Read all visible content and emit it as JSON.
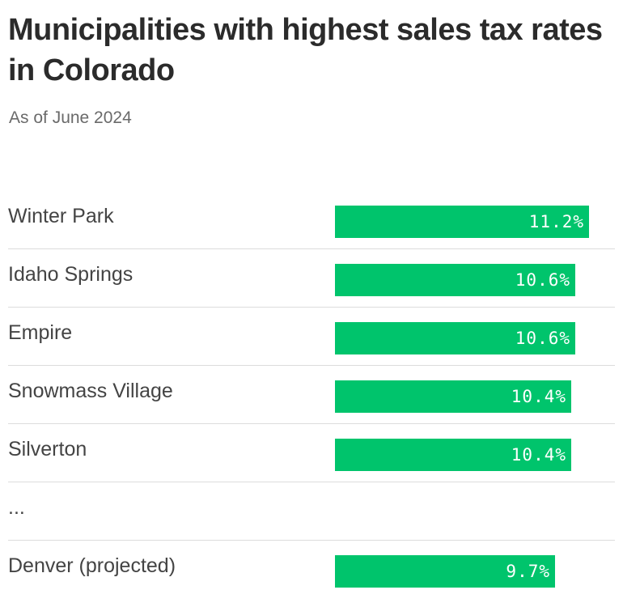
{
  "title": "Municipalities with highest sales tax rates in Colorado",
  "subtitle": "As of June 2024",
  "colors": {
    "bar": "#00c46c",
    "divider": "#dcdcdc",
    "text": "#444444"
  },
  "chart_data": {
    "type": "bar",
    "orientation": "horizontal",
    "title": "Municipalities with highest sales tax rates in Colorado",
    "subtitle": "As of June 2024",
    "xlabel": "",
    "ylabel": "",
    "xlim": [
      0,
      11.2
    ],
    "unit": "%",
    "rows": [
      {
        "label": "Winter Park",
        "value": 11.2,
        "value_label": "11.2%"
      },
      {
        "label": "Idaho Springs",
        "value": 10.6,
        "value_label": "10.6%"
      },
      {
        "label": "Empire",
        "value": 10.6,
        "value_label": "10.6%"
      },
      {
        "label": "Snowmass Village",
        "value": 10.4,
        "value_label": "10.4%"
      },
      {
        "label": "Silverton",
        "value": 10.4,
        "value_label": "10.4%"
      },
      {
        "label": "...",
        "value": null,
        "value_label": null
      },
      {
        "label": "Denver (projected)",
        "value": 9.7,
        "value_label": "9.7%"
      }
    ]
  }
}
